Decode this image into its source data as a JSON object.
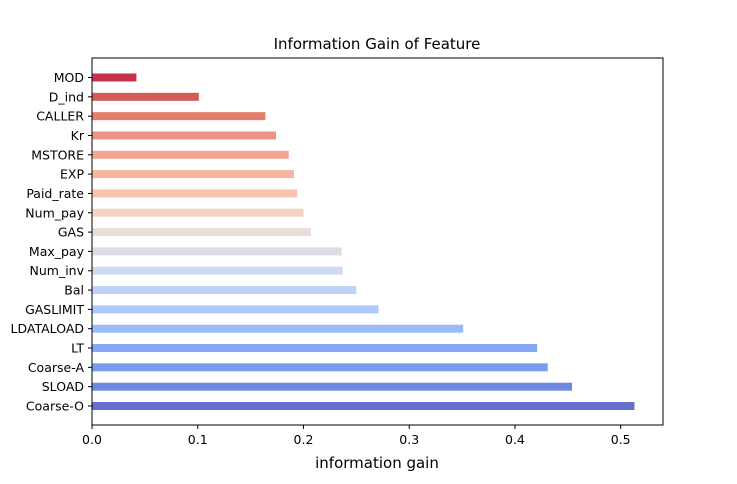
{
  "chart_data": {
    "type": "bar",
    "orientation": "horizontal",
    "title": "Information Gain of Feature",
    "xlabel": "information gain",
    "ylabel": "",
    "xlim": [
      0,
      0.54
    ],
    "x_ticks": [
      0.0,
      0.1,
      0.2,
      0.3,
      0.4,
      0.5
    ],
    "x_tick_labels": [
      "0.0",
      "0.1",
      "0.2",
      "0.3",
      "0.4",
      "0.5"
    ],
    "grid": false,
    "legend": "none",
    "colormap": "coolwarm",
    "categories": [
      "MOD",
      "D_ind",
      "CALLER",
      "Kr",
      "MSTORE",
      "EXP",
      "Paid_rate",
      "Num_pay",
      "GAS",
      "Max_pay",
      "Num_inv",
      "Bal",
      "GASLIMIT",
      "LDATALOAD",
      "LT",
      "Coarse-A",
      "SLOAD",
      "Coarse-O"
    ],
    "category_labels": [
      "MOD",
      "D_ind",
      "CALLER",
      "Kr",
      "MSTORE",
      "EXP",
      "Paid_rate",
      "Num_pay",
      "GAS",
      "Max_pay",
      "Num_inv",
      "Bal",
      "GASLIMIT",
      "LDATALOAD",
      "LT",
      "Coarse-A",
      "SLOAD",
      "Coarse-O"
    ],
    "values": [
      0.042,
      0.101,
      0.164,
      0.174,
      0.186,
      0.191,
      0.194,
      0.2,
      0.207,
      0.236,
      0.237,
      0.25,
      0.271,
      0.351,
      0.421,
      0.431,
      0.454,
      0.513
    ],
    "colors": [
      "#c5334b",
      "#d55b58",
      "#e47d6c",
      "#ea9584",
      "#f1a78f",
      "#f4b69c",
      "#f6c4ac",
      "#f2d3c6",
      "#e8ddd8",
      "#dadde4",
      "#cfdcef",
      "#bfd3f6",
      "#adc9fb",
      "#9bbafb",
      "#86a8f6",
      "#7a9cf0",
      "#6e89e0",
      "#6471ce"
    ]
  }
}
